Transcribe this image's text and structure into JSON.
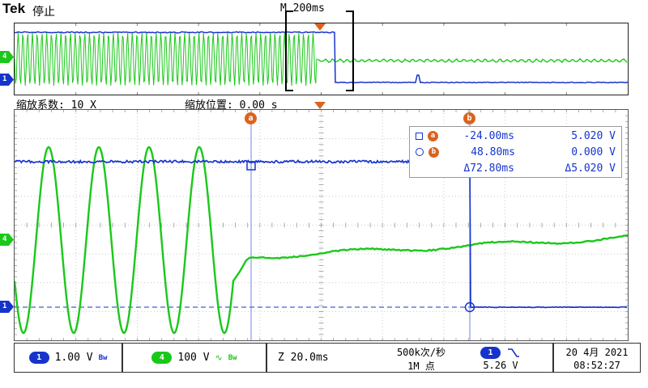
{
  "colors": {
    "ch1": "#1634cc",
    "ch4": "#1ac81a",
    "cursor": "#d9641e",
    "readout": "#1634cc"
  },
  "header": {
    "brand": "Tek",
    "status": "停止",
    "main_timebase": "M 200ms"
  },
  "zoom_bar": {
    "factor": "缩放系数: 10 X",
    "position": "缩放位置: 0.00 s"
  },
  "markers": {
    "ch1": "1",
    "ch4": "4",
    "cursor_a": "a",
    "cursor_b": "b"
  },
  "cursor_readout": {
    "a_time": "-24.00ms",
    "a_voltage": "5.020 V",
    "b_time": "48.80ms",
    "b_voltage": "0.000 V",
    "d_time": "Δ72.80ms",
    "d_voltage": "Δ5.020 V"
  },
  "status_bar": {
    "ch1_badge": "1",
    "ch1_scale": "1.00 V",
    "ch1_bw": "Bw",
    "ch4_badge": "4",
    "ch4_scale": "100 V",
    "ch4_coupling": "∿",
    "ch4_bw": "Bw",
    "zoom_timebase": "Z 20.0ms",
    "acq_rate": "500k次/秒",
    "record_length": "1M 点",
    "trigger_badge": "1",
    "trigger_level": "5.26 V",
    "date": "20 4月 2021",
    "time": "08:52:27"
  }
}
